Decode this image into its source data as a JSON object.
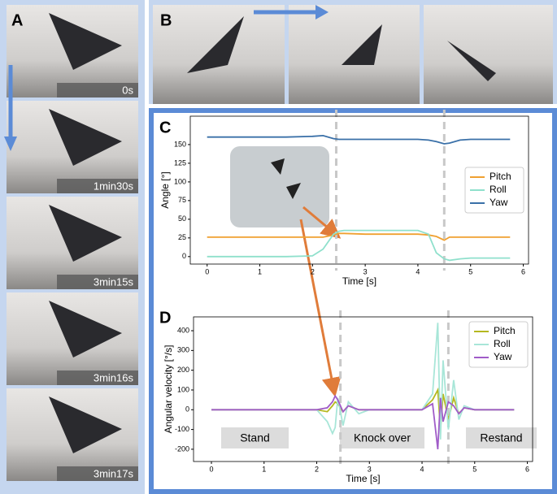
{
  "panels": {
    "a": "A",
    "b": "B",
    "c": "C",
    "d": "D"
  },
  "captions": [
    "0s",
    "1min30s",
    "3min15s",
    "3min16s",
    "3min17s"
  ],
  "chart_data": [
    {
      "type": "line",
      "xlabel": "Time [s]",
      "ylabel": "Angle [°]",
      "xlim": [
        -0.32,
        6.1
      ],
      "ylim": [
        -10,
        188
      ],
      "xticks": [
        0,
        1,
        2,
        3,
        4,
        5,
        6
      ],
      "yticks": [
        0,
        25,
        50,
        75,
        100,
        125,
        150
      ],
      "legend": "center right",
      "vlines": [
        2.45,
        4.5
      ],
      "x": [
        0,
        0.5,
        1,
        1.5,
        2,
        2.2,
        2.4,
        2.5,
        2.6,
        3,
        3.5,
        4,
        4.2,
        4.35,
        4.5,
        4.6,
        4.8,
        5,
        5.5,
        5.75
      ],
      "series": [
        {
          "name": "Pitch",
          "color": "#f0a030",
          "values": [
            26,
            26,
            26,
            26,
            26,
            26,
            29,
            31,
            31,
            30,
            30,
            30,
            29,
            27,
            22,
            26,
            26,
            26,
            26,
            26
          ]
        },
        {
          "name": "Roll",
          "color": "#8fe0cc",
          "values": [
            0,
            0,
            0,
            0,
            1,
            10,
            30,
            34,
            35,
            35,
            35,
            35,
            30,
            5,
            -3,
            -5,
            -3,
            -2,
            -2,
            -2
          ]
        },
        {
          "name": "Yaw",
          "color": "#3a70a8",
          "values": [
            160,
            160,
            160,
            160,
            161,
            162,
            158,
            157,
            157,
            157,
            157,
            157,
            156,
            154,
            151,
            152,
            156,
            157,
            157,
            157
          ]
        }
      ]
    },
    {
      "type": "line",
      "xlabel": "Time [s]",
      "ylabel": "Angular velocity [°/s]",
      "xlim": [
        -0.34,
        6.1
      ],
      "ylim": [
        -262,
        470
      ],
      "xticks": [
        0,
        1,
        2,
        3,
        4,
        5,
        6
      ],
      "yticks": [
        -200,
        -100,
        0,
        100,
        200,
        300,
        400
      ],
      "legend": "upper right",
      "vlines": [
        2.45,
        4.5
      ],
      "annotations": [
        "Stand",
        "Knock over",
        "Restand"
      ],
      "x": [
        0,
        0.5,
        1,
        1.5,
        2,
        2.2,
        2.3,
        2.35,
        2.4,
        2.5,
        2.6,
        2.8,
        3,
        3.5,
        4,
        4.2,
        4.3,
        4.35,
        4.4,
        4.5,
        4.6,
        4.7,
        4.8,
        5,
        5.5,
        5.75
      ],
      "series": [
        {
          "name": "Pitch",
          "color": "#b5b820",
          "values": [
            0,
            0,
            0,
            0,
            0,
            -10,
            20,
            40,
            30,
            -10,
            20,
            0,
            0,
            0,
            0,
            50,
            100,
            -100,
            80,
            -50,
            60,
            -20,
            10,
            0,
            0,
            0
          ]
        },
        {
          "name": "Roll",
          "color": "#a8e6d8",
          "values": [
            0,
            0,
            0,
            0,
            0,
            -60,
            -120,
            -90,
            60,
            -80,
            40,
            -20,
            0,
            0,
            0,
            80,
            440,
            -150,
            250,
            -100,
            150,
            -50,
            20,
            0,
            0,
            0
          ]
        },
        {
          "name": "Yaw",
          "color": "#a05cc8",
          "values": [
            0,
            0,
            0,
            0,
            0,
            10,
            40,
            70,
            50,
            -10,
            20,
            0,
            0,
            0,
            0,
            30,
            -200,
            60,
            -60,
            40,
            20,
            -20,
            10,
            0,
            0,
            0
          ]
        }
      ]
    }
  ]
}
